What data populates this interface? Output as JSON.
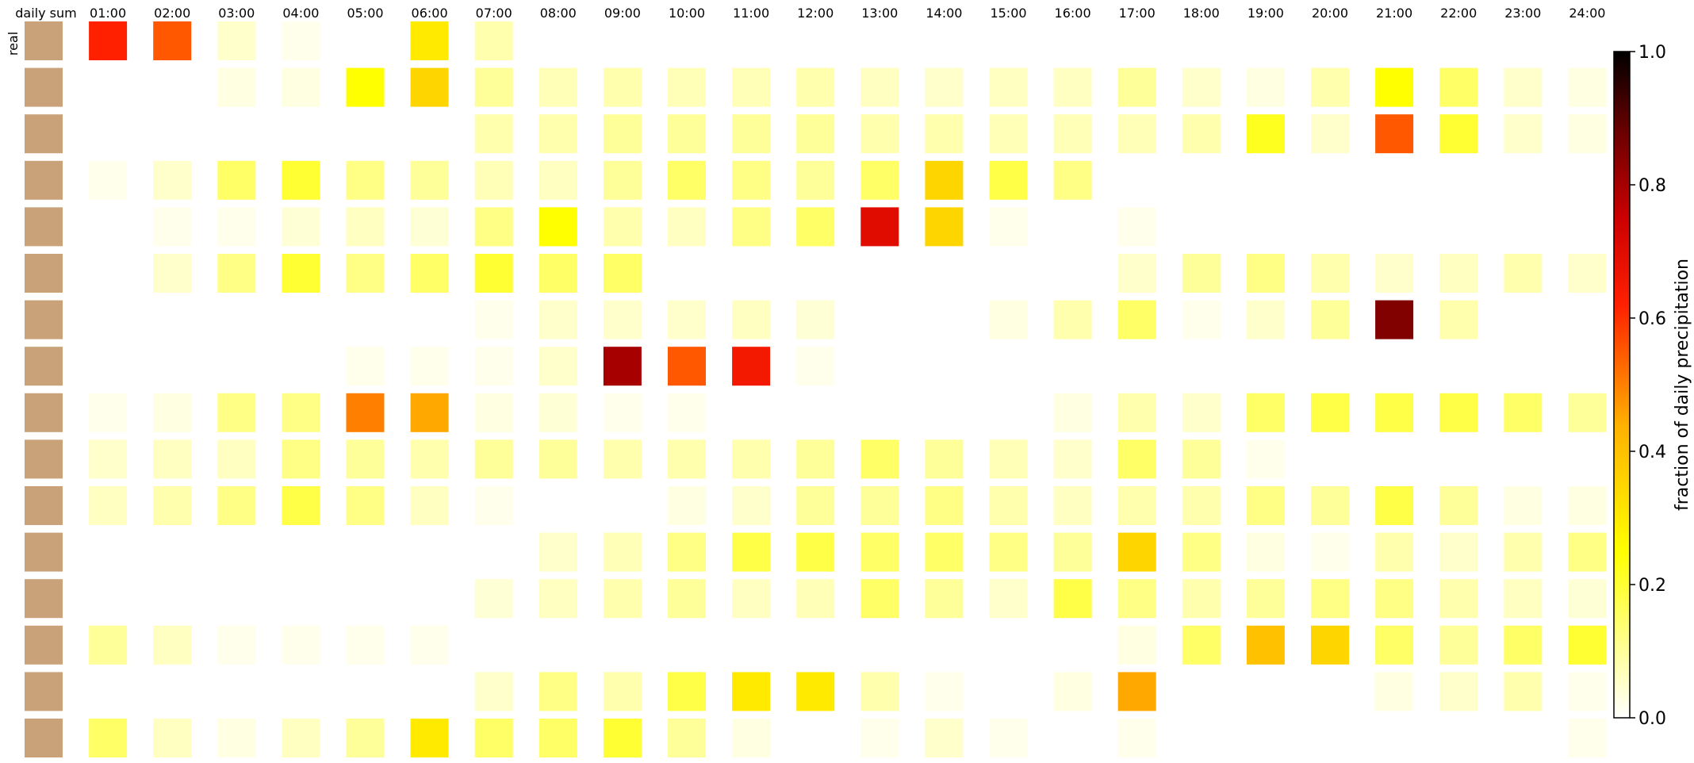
{
  "chart_data": {
    "type": "heatmap",
    "title": "",
    "first_column_label": "daily sum",
    "row_label": "real",
    "columns": [
      "01:00",
      "02:00",
      "03:00",
      "04:00",
      "05:00",
      "06:00",
      "07:00",
      "08:00",
      "09:00",
      "10:00",
      "11:00",
      "12:00",
      "13:00",
      "14:00",
      "15:00",
      "16:00",
      "17:00",
      "18:00",
      "19:00",
      "20:00",
      "21:00",
      "22:00",
      "23:00",
      "24:00"
    ],
    "rows": 16,
    "daily_sum_color": "#c9a27a",
    "colorbar": {
      "label": "fraction of daily precipitation",
      "range": [
        0,
        1
      ],
      "ticks": [
        "0.0",
        "0.2",
        "0.4",
        "0.6",
        "0.8",
        "1.0"
      ],
      "colormap": "hot_r"
    },
    "values": [
      [
        0.62,
        0.55,
        0.05,
        0.02,
        0.0,
        0.3,
        0.08,
        0.0,
        0.0,
        0.0,
        0.0,
        0.0,
        0.0,
        0.0,
        0.0,
        0.0,
        0.0,
        0.0,
        0.0,
        0.0,
        0.0,
        0.0,
        0.0,
        0.0
      ],
      [
        0.0,
        0.0,
        0.03,
        0.03,
        0.25,
        0.35,
        0.1,
        0.07,
        0.08,
        0.07,
        0.07,
        0.08,
        0.06,
        0.05,
        0.06,
        0.06,
        0.1,
        0.05,
        0.03,
        0.08,
        0.25,
        0.15,
        0.05,
        0.03
      ],
      [
        0.0,
        0.0,
        0.0,
        0.0,
        0.0,
        0.0,
        0.08,
        0.08,
        0.1,
        0.1,
        0.1,
        0.1,
        0.08,
        0.08,
        0.07,
        0.07,
        0.07,
        0.08,
        0.22,
        0.05,
        0.55,
        0.2,
        0.05,
        0.03
      ],
      [
        0.02,
        0.05,
        0.15,
        0.2,
        0.12,
        0.1,
        0.07,
        0.06,
        0.1,
        0.15,
        0.12,
        0.1,
        0.15,
        0.35,
        0.18,
        0.12,
        0.0,
        0.0,
        0.0,
        0.0,
        0.0,
        0.0,
        0.0,
        0.0
      ],
      [
        0.0,
        0.02,
        0.02,
        0.04,
        0.06,
        0.04,
        0.12,
        0.25,
        0.08,
        0.06,
        0.12,
        0.15,
        0.7,
        0.35,
        0.02,
        0.0,
        0.02,
        0.0,
        0.0,
        0.0,
        0.0,
        0.0,
        0.0,
        0.0
      ],
      [
        0.0,
        0.05,
        0.12,
        0.2,
        0.12,
        0.15,
        0.2,
        0.15,
        0.15,
        0.0,
        0.0,
        0.0,
        0.0,
        0.0,
        0.0,
        0.0,
        0.05,
        0.1,
        0.12,
        0.08,
        0.05,
        0.06,
        0.08,
        0.05
      ],
      [
        0.0,
        0.0,
        0.0,
        0.0,
        0.0,
        0.0,
        0.02,
        0.05,
        0.05,
        0.05,
        0.06,
        0.04,
        0.0,
        0.0,
        0.03,
        0.08,
        0.15,
        0.02,
        0.05,
        0.1,
        0.85,
        0.08,
        0.0,
        0.0
      ],
      [
        0.0,
        0.0,
        0.0,
        0.0,
        0.02,
        0.02,
        0.02,
        0.05,
        0.8,
        0.55,
        0.65,
        0.02,
        0.0,
        0.0,
        0.0,
        0.0,
        0.0,
        0.0,
        0.0,
        0.0,
        0.0,
        0.0,
        0.0,
        0.0
      ],
      [
        0.02,
        0.03,
        0.12,
        0.12,
        0.5,
        0.45,
        0.03,
        0.04,
        0.02,
        0.02,
        0.0,
        0.0,
        0.0,
        0.0,
        0.0,
        0.03,
        0.08,
        0.05,
        0.15,
        0.18,
        0.18,
        0.18,
        0.15,
        0.1
      ],
      [
        0.05,
        0.06,
        0.06,
        0.12,
        0.1,
        0.08,
        0.1,
        0.1,
        0.08,
        0.08,
        0.08,
        0.1,
        0.15,
        0.1,
        0.07,
        0.05,
        0.15,
        0.1,
        0.02,
        0.0,
        0.0,
        0.0,
        0.0,
        0.0
      ],
      [
        0.06,
        0.08,
        0.12,
        0.18,
        0.12,
        0.06,
        0.02,
        0.0,
        0.0,
        0.03,
        0.05,
        0.1,
        0.1,
        0.12,
        0.08,
        0.06,
        0.08,
        0.08,
        0.12,
        0.1,
        0.18,
        0.1,
        0.03,
        0.03
      ],
      [
        0.0,
        0.0,
        0.0,
        0.0,
        0.0,
        0.0,
        0.0,
        0.05,
        0.07,
        0.12,
        0.18,
        0.18,
        0.15,
        0.15,
        0.12,
        0.1,
        0.35,
        0.12,
        0.03,
        0.02,
        0.08,
        0.05,
        0.08,
        0.12
      ],
      [
        0.0,
        0.0,
        0.0,
        0.0,
        0.0,
        0.0,
        0.04,
        0.06,
        0.08,
        0.1,
        0.06,
        0.07,
        0.15,
        0.1,
        0.05,
        0.18,
        0.12,
        0.08,
        0.1,
        0.12,
        0.12,
        0.08,
        0.06,
        0.04
      ],
      [
        0.1,
        0.06,
        0.02,
        0.02,
        0.02,
        0.02,
        0.0,
        0.0,
        0.0,
        0.0,
        0.0,
        0.0,
        0.0,
        0.0,
        0.0,
        0.0,
        0.03,
        0.15,
        0.4,
        0.35,
        0.15,
        0.1,
        0.15,
        0.2
      ],
      [
        0.0,
        0.0,
        0.0,
        0.0,
        0.0,
        0.0,
        0.05,
        0.12,
        0.08,
        0.18,
        0.3,
        0.3,
        0.08,
        0.02,
        0.0,
        0.03,
        0.45,
        0.0,
        0.0,
        0.0,
        0.03,
        0.05,
        0.08,
        0.02
      ],
      [
        0.15,
        0.06,
        0.03,
        0.06,
        0.1,
        0.3,
        0.15,
        0.15,
        0.2,
        0.1,
        0.03,
        0.0,
        0.02,
        0.05,
        0.02,
        0.0,
        0.02,
        0.0,
        0.0,
        0.0,
        0.0,
        0.0,
        0.0,
        0.02
      ]
    ]
  }
}
